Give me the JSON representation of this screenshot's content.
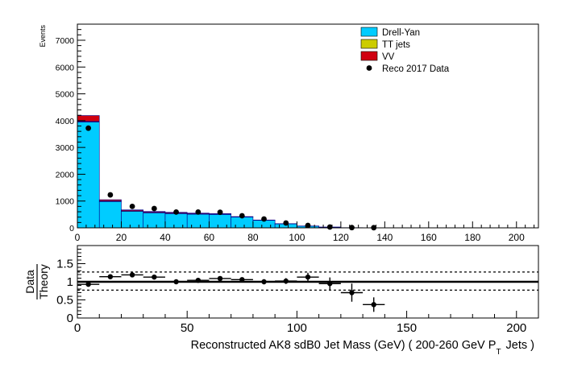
{
  "chart_data": [
    {
      "type": "bar",
      "subtype": "stacked-histogram",
      "ylabel": "Events",
      "xlim": [
        0,
        210
      ],
      "ylim": [
        0,
        7600
      ],
      "x_ticks": [
        0,
        20,
        40,
        60,
        80,
        100,
        120,
        140,
        160,
        180,
        200
      ],
      "y_ticks": [
        0,
        1000,
        2000,
        3000,
        4000,
        5000,
        6000,
        7000
      ],
      "bin_edges": [
        0,
        10,
        20,
        30,
        40,
        50,
        60,
        70,
        80,
        90,
        100,
        110,
        120,
        130,
        140,
        150,
        160,
        170,
        180,
        190,
        200,
        210
      ],
      "legend_position": "top-right",
      "series": [
        {
          "name": "Drell-Yan",
          "color": "#00ccff",
          "values": [
            3950,
            980,
            610,
            560,
            530,
            510,
            500,
            400,
            280,
            150,
            65,
            25,
            8,
            2,
            0,
            0,
            0,
            0,
            0,
            0,
            0
          ]
        },
        {
          "name": "TT jets",
          "color": "#cccc00",
          "values": [
            20,
            20,
            25,
            20,
            20,
            15,
            10,
            8,
            5,
            3,
            2,
            1,
            0,
            0,
            0,
            0,
            0,
            0,
            0,
            0,
            0
          ]
        },
        {
          "name": "VV",
          "color": "#d00010",
          "values": [
            220,
            50,
            35,
            30,
            30,
            25,
            20,
            12,
            8,
            4,
            2,
            1,
            0,
            0,
            0,
            0,
            0,
            0,
            0,
            0,
            0
          ]
        }
      ],
      "data_series": {
        "name": "Reco 2017 Data",
        "color": "#000000",
        "x": [
          5,
          15,
          25,
          35,
          45,
          55,
          65,
          75,
          85,
          95,
          105,
          115,
          125,
          135
        ],
        "y": [
          3720,
          1230,
          800,
          720,
          590,
          590,
          580,
          450,
          330,
          180,
          90,
          30,
          10,
          5
        ]
      }
    },
    {
      "type": "scatter",
      "ylabel_numerator": "Data",
      "ylabel_denominator": "Theory",
      "xlabel_main": "Reconstructed AK8 sdB0 Jet Mass (GeV) ( 200-260 GeV P",
      "xlabel_subscript": "T",
      "xlabel_tail": "Jets )",
      "xlim": [
        0,
        210
      ],
      "ylim": [
        0,
        2.0
      ],
      "x_ticks": [
        0,
        50,
        100,
        150,
        200
      ],
      "y_ticks": [
        0,
        0.5,
        1,
        1.5
      ],
      "reference_line": 1.0,
      "band_lines": [
        0.77,
        1.27
      ],
      "points": {
        "x": [
          5,
          15,
          25,
          35,
          45,
          55,
          65,
          75,
          85,
          95,
          105,
          115,
          125,
          135
        ],
        "y": [
          0.93,
          1.14,
          1.19,
          1.13,
          1.0,
          1.04,
          1.09,
          1.06,
          1.0,
          1.02,
          1.13,
          0.95,
          0.7,
          0.37
        ],
        "xerr": [
          5,
          5,
          5,
          5,
          5,
          5,
          5,
          5,
          5,
          5,
          5,
          5,
          5,
          5
        ],
        "yerr": [
          0.05,
          0.05,
          0.06,
          0.06,
          0.06,
          0.06,
          0.06,
          0.06,
          0.07,
          0.08,
          0.12,
          0.17,
          0.25,
          0.2
        ]
      }
    }
  ]
}
